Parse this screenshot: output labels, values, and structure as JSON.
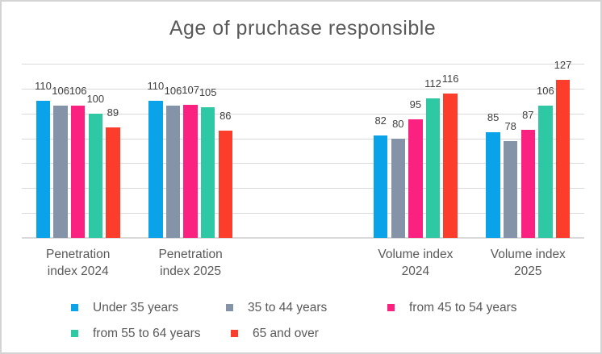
{
  "title": "Age of pruchase responsible",
  "chart_data": {
    "type": "bar",
    "title": "Age of pruchase responsible",
    "categories": [
      "Penetration\nindex 2024",
      "Penetration\nindex 2025",
      "",
      "Volume index\n2024",
      "Volume index\n2025"
    ],
    "series": [
      {
        "name": "Under 35 years",
        "color": "#0aa2e9",
        "values": [
          110,
          110,
          null,
          82,
          85
        ]
      },
      {
        "name": "35 to 44 years",
        "color": "#8493a8",
        "values": [
          106,
          106,
          null,
          80,
          78
        ]
      },
      {
        "name": "from 45 to 54 years",
        "color": "#fb2180",
        "values": [
          106,
          107,
          null,
          95,
          87
        ]
      },
      {
        "name": "from 55 to 64 years",
        "color": "#2ec9a4",
        "values": [
          100,
          105,
          null,
          112,
          106
        ]
      },
      {
        "name": "65 and over",
        "color": "#fc3d2b",
        "values": [
          89,
          86,
          null,
          116,
          127
        ]
      }
    ],
    "ylim": [
      0,
      140
    ],
    "gridline_step": 20,
    "grid": true,
    "value_axis_labels": false,
    "data_labels": true,
    "legend_position": "bottom"
  },
  "colors": {
    "title_text": "#595959",
    "axis_text": "#595959",
    "data_label_text": "#404040",
    "gridline": "#d9d9d9",
    "frame_border": "#d4d4d4",
    "background": "#ffffff"
  }
}
